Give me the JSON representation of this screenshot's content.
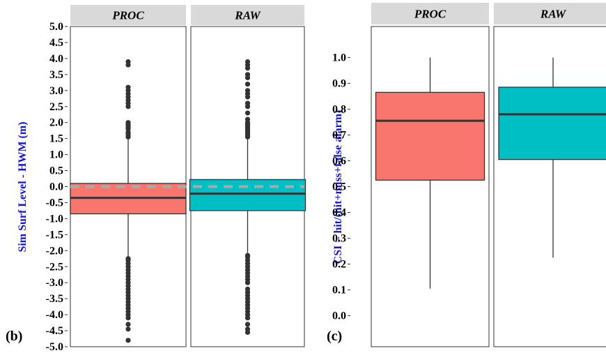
{
  "chart_data": [
    {
      "type": "boxplot",
      "panel_label": "(b)",
      "ylabel": "Sim Surf Level - HWM (m)",
      "ylim": [
        -5.0,
        5.0
      ],
      "yticks": [
        "5.0",
        "4.5",
        "4.0",
        "3.5",
        "3.0",
        "2.5",
        "2.0",
        "1.5",
        "1.0",
        "0.5",
        "0.0",
        "-0.5",
        "-1.0",
        "-1.5",
        "-2.0",
        "-2.5",
        "-3.0",
        "-3.5",
        "-4.0",
        "-4.5",
        "-5.0"
      ],
      "reference_line": {
        "y": 0.0,
        "style": "dashed",
        "color": "#aaaaaa"
      },
      "facets": [
        {
          "name": "PROC",
          "color": "#f8766d",
          "q1": -0.85,
          "median": -0.35,
          "q3": 0.1,
          "whisker_low": -2.2,
          "whisker_high": 1.5,
          "outliers": [
            3.9,
            3.8,
            3.1,
            3.0,
            2.9,
            2.8,
            2.7,
            2.6,
            2.5,
            2.0,
            1.95,
            1.9,
            1.85,
            1.8,
            1.7,
            1.65,
            1.6,
            1.55,
            -2.25,
            -2.3,
            -2.4,
            -2.5,
            -2.6,
            -2.7,
            -2.8,
            -2.9,
            -3.0,
            -3.1,
            -3.2,
            -3.3,
            -3.4,
            -3.5,
            -3.6,
            -3.7,
            -3.8,
            -3.9,
            -4.0,
            -4.1,
            -4.3,
            -4.45,
            -4.8
          ]
        },
        {
          "name": "RAW",
          "color": "#00bfc4",
          "q1": -0.75,
          "median": -0.22,
          "q3": 0.22,
          "whisker_low": -2.1,
          "whisker_high": 1.5,
          "outliers": [
            3.9,
            3.8,
            3.7,
            3.5,
            3.4,
            3.2,
            3.0,
            2.9,
            2.8,
            2.6,
            2.5,
            2.3,
            2.1,
            2.0,
            1.95,
            1.9,
            1.85,
            1.8,
            1.75,
            1.7,
            1.65,
            1.6,
            1.55,
            -2.15,
            -2.2,
            -2.3,
            -2.4,
            -2.5,
            -2.6,
            -2.7,
            -2.8,
            -2.9,
            -3.0,
            -3.2,
            -3.3,
            -3.4,
            -3.5,
            -3.6,
            -3.7,
            -3.8,
            -3.9,
            -4.0,
            -4.1,
            -4.3,
            -4.45,
            -4.55
          ]
        }
      ]
    },
    {
      "type": "boxplot",
      "panel_label": "(c)",
      "ylabel": "CSI = hit/(hit+miss+false alarm)",
      "ylim": [
        -0.12,
        1.12
      ],
      "yticks": [
        "1.0",
        "0.9",
        "0.8",
        "0.7",
        "0.6",
        "0.5",
        "0.4",
        "0.3",
        "0.2",
        "0.1",
        "0.0"
      ],
      "facets": [
        {
          "name": "PROC",
          "color": "#f8766d",
          "q1": 0.525,
          "median": 0.755,
          "q3": 0.865,
          "whisker_low": 0.105,
          "whisker_high": 1.0,
          "outliers": []
        },
        {
          "name": "RAW",
          "color": "#00bfc4",
          "q1": 0.605,
          "median": 0.78,
          "q3": 0.885,
          "whisker_low": 0.225,
          "whisker_high": 1.0,
          "outliers": []
        }
      ]
    }
  ]
}
